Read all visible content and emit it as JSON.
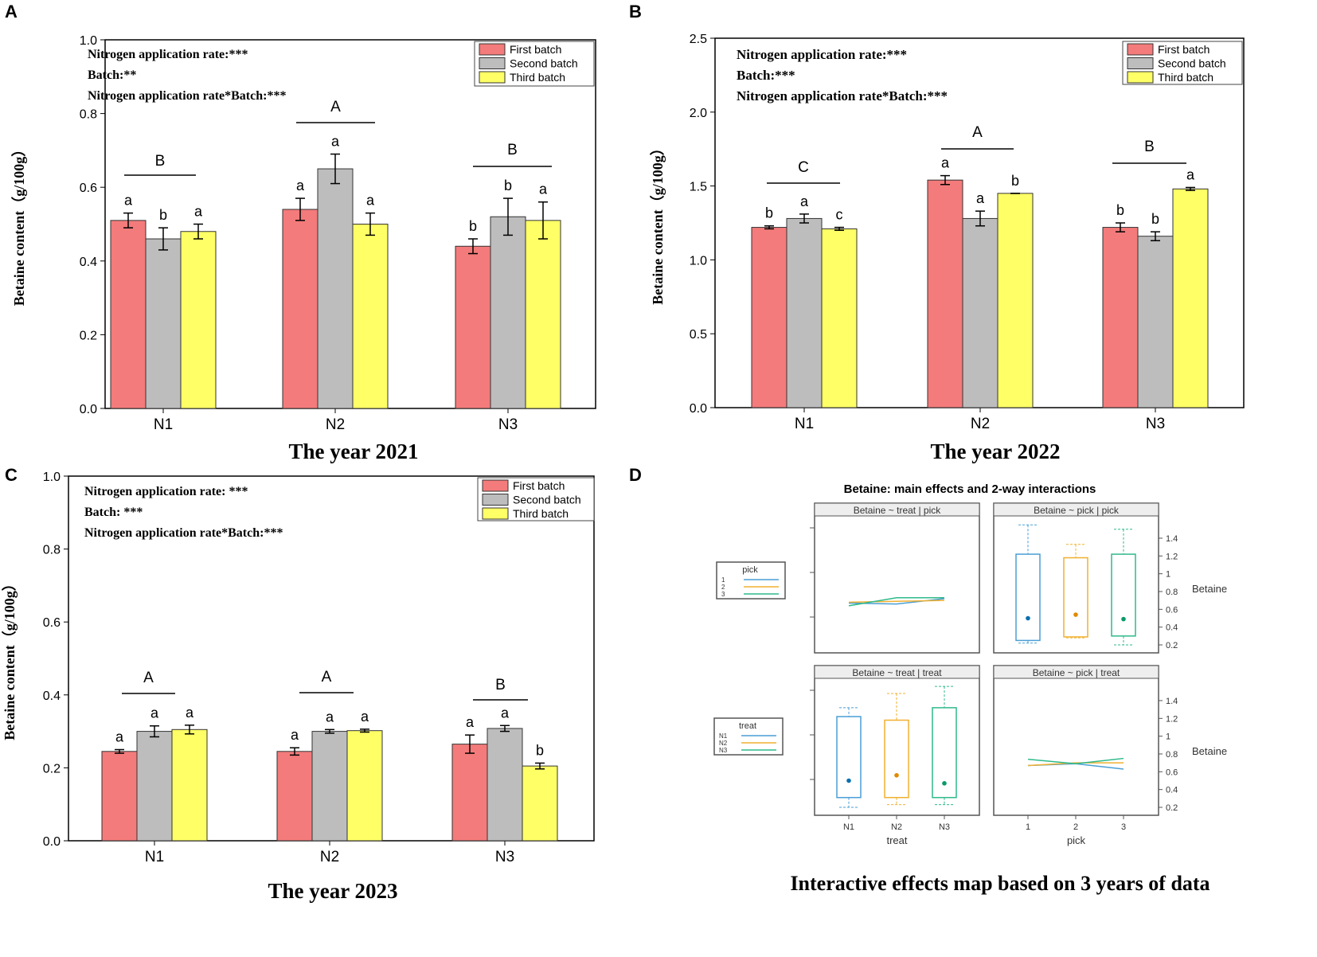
{
  "chart_data": [
    {
      "type": "bar",
      "panel": "A",
      "title": "The year 2021",
      "ylabel": "Betaine content（g/100g）",
      "xlabel": "",
      "ylim": [
        0,
        1.0
      ],
      "yticks": [
        "0.0",
        "0.2",
        "0.4",
        "0.6",
        "0.8",
        "1.0"
      ],
      "categories": [
        "N1",
        "N2",
        "N3"
      ],
      "legend": "top-right",
      "annotations": [
        "Nitrogen application rate:***",
        "Batch:**",
        "Nitrogen application rate*Batch:***"
      ],
      "group_letters": [
        "B",
        "A",
        "B"
      ],
      "series": [
        {
          "name": "First batch",
          "color": "#f47b7b",
          "values": [
            0.51,
            0.54,
            0.44
          ],
          "errors": [
            0.02,
            0.03,
            0.02
          ],
          "letters": [
            "a",
            "a",
            "b"
          ]
        },
        {
          "name": "Second batch",
          "color": "#bdbdbd",
          "values": [
            0.46,
            0.65,
            0.52
          ],
          "errors": [
            0.03,
            0.04,
            0.05
          ],
          "letters": [
            "b",
            "a",
            "b"
          ]
        },
        {
          "name": "Third batch",
          "color": "#ffff66",
          "values": [
            0.48,
            0.5,
            0.51
          ],
          "errors": [
            0.02,
            0.03,
            0.05
          ],
          "letters": [
            "a",
            "a",
            "a"
          ]
        }
      ]
    },
    {
      "type": "bar",
      "panel": "B",
      "title": "The year 2022",
      "ylabel": "Betaine content（g/100g）",
      "xlabel": "",
      "ylim": [
        0,
        2.5
      ],
      "yticks": [
        "0.0",
        "0.5",
        "1.0",
        "1.5",
        "2.0",
        "2.5"
      ],
      "categories": [
        "N1",
        "N2",
        "N3"
      ],
      "legend": "top-right",
      "annotations": [
        "Nitrogen application rate:***",
        "Batch:***",
        "Nitrogen application rate*Batch:***"
      ],
      "group_letters": [
        "C",
        "A",
        "B"
      ],
      "series": [
        {
          "name": "First batch",
          "color": "#f47b7b",
          "values": [
            1.22,
            1.54,
            1.22
          ],
          "errors": [
            0.01,
            0.03,
            0.03
          ],
          "letters": [
            "b",
            "a",
            "b"
          ]
        },
        {
          "name": "Second batch",
          "color": "#bdbdbd",
          "values": [
            1.28,
            1.28,
            1.16
          ],
          "errors": [
            0.03,
            0.05,
            0.03
          ],
          "letters": [
            "a",
            "a",
            "b"
          ]
        },
        {
          "name": "Third batch",
          "color": "#ffff66",
          "values": [
            1.21,
            1.45,
            1.48
          ],
          "errors": [
            0.01,
            0.0,
            0.01
          ],
          "letters": [
            "c",
            "b",
            "a"
          ]
        }
      ]
    },
    {
      "type": "bar",
      "panel": "C",
      "title": "The year 2023",
      "ylabel": "Betaine content（g/100g）",
      "xlabel": "",
      "ylim": [
        0,
        1.0
      ],
      "yticks": [
        "0.0",
        "0.2",
        "0.4",
        "0.6",
        "0.8",
        "1.0"
      ],
      "categories": [
        "N1",
        "N2",
        "N3"
      ],
      "legend": "top-right",
      "annotations": [
        "Nitrogen application rate:  ***",
        "Batch:  ***",
        "Nitrogen application rate*Batch:***"
      ],
      "group_letters": [
        "A",
        "A",
        "B"
      ],
      "series": [
        {
          "name": "First batch",
          "color": "#f47b7b",
          "values": [
            0.245,
            0.245,
            0.265
          ],
          "errors": [
            0.005,
            0.01,
            0.025
          ],
          "letters": [
            "a",
            "a",
            "a"
          ]
        },
        {
          "name": "Second batch",
          "color": "#bdbdbd",
          "values": [
            0.3,
            0.3,
            0.308
          ],
          "errors": [
            0.015,
            0.005,
            0.008
          ],
          "letters": [
            "a",
            "a",
            "a"
          ]
        },
        {
          "name": "Third batch",
          "color": "#ffff66",
          "values": [
            0.305,
            0.302,
            0.205
          ],
          "errors": [
            0.012,
            0.004,
            0.008
          ],
          "letters": [
            "a",
            "a",
            "b"
          ]
        }
      ]
    },
    {
      "type": "interaction",
      "panel": "D",
      "title": "Betaine: main effects and 2-way interactions",
      "caption": "Interactive effects map based on 3 years of data",
      "response": "Betaine",
      "yticks": [
        "0.2",
        "0.4",
        "0.6",
        "0.8",
        "1",
        "1.2",
        "1.4"
      ],
      "colors": [
        "#4a9fd5",
        "#f0b030",
        "#2fba8a"
      ],
      "mean_colors": [
        "#0a6fb0",
        "#e08a00",
        "#0a9a6a"
      ],
      "legends": [
        {
          "title": "pick",
          "items": [
            "1",
            "2",
            "3"
          ]
        },
        {
          "title": "treat",
          "items": [
            "N1",
            "N2",
            "N3"
          ]
        }
      ],
      "panels": [
        {
          "strip": "Betaine ~ treat | pick",
          "kind": "lines",
          "x": [
            "N1",
            "N2",
            "N3"
          ],
          "series": [
            [
              0.67,
              0.66,
              0.72
            ],
            [
              0.68,
              0.69,
              0.7
            ],
            [
              0.64,
              0.73,
              0.73
            ]
          ]
        },
        {
          "strip": "Betaine ~ pick | pick",
          "kind": "box",
          "boxes": [
            {
              "hi": 1.55,
              "q3": 1.22,
              "q1": 0.25,
              "lo": 0.22,
              "mean": 0.5
            },
            {
              "hi": 1.33,
              "q3": 1.18,
              "q1": 0.29,
              "lo": 0.28,
              "mean": 0.54
            },
            {
              "hi": 1.5,
              "q3": 1.22,
              "q1": 0.3,
              "lo": 0.2,
              "mean": 0.49
            }
          ]
        },
        {
          "strip": "Betaine ~ treat | treat",
          "kind": "box",
          "xlabel": "treat",
          "x": [
            "N1",
            "N2",
            "N3"
          ],
          "boxes": [
            {
              "hi": 1.32,
              "q3": 1.22,
              "q1": 0.31,
              "lo": 0.2,
              "mean": 0.5
            },
            {
              "hi": 1.48,
              "q3": 1.18,
              "q1": 0.31,
              "lo": 0.23,
              "mean": 0.56
            },
            {
              "hi": 1.56,
              "q3": 1.32,
              "q1": 0.31,
              "lo": 0.23,
              "mean": 0.47
            }
          ]
        },
        {
          "strip": "Betaine ~ pick | treat",
          "kind": "lines",
          "xlabel": "pick",
          "x": [
            "1",
            "2",
            "3"
          ],
          "series": [
            [
              0.67,
              0.69,
              0.63
            ],
            [
              0.67,
              0.7,
              0.7
            ],
            [
              0.74,
              0.69,
              0.75
            ]
          ]
        }
      ]
    }
  ]
}
